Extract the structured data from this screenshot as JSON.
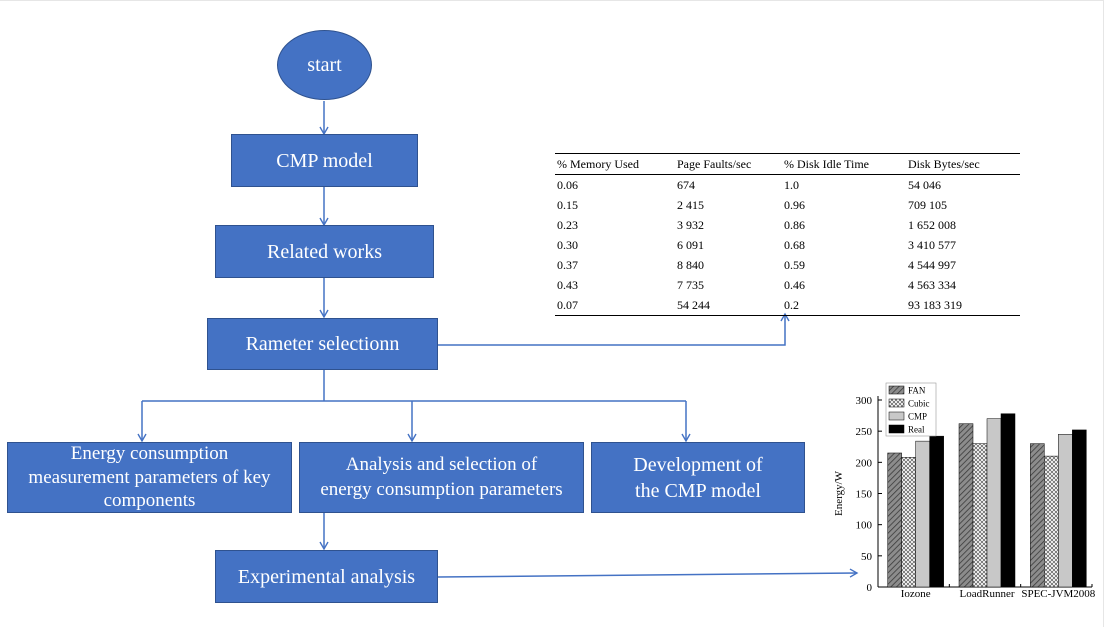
{
  "flowchart": {
    "start": "start",
    "cmp_model": "CMP model",
    "related_works": "Related works",
    "parameter_selection": "Rameter selectionn",
    "energy_measurement": [
      "Energy consumption",
      "measurement parameters of key",
      "components"
    ],
    "analysis_selection": [
      "Analysis and selection of",
      "energy consumption parameters"
    ],
    "development": [
      "Development of",
      "the CMP model"
    ],
    "experimental_analysis": "Experimental analysis"
  },
  "colors": {
    "node_fill": "#4472c4",
    "node_border": "#2f528f",
    "connector": "#4472c4"
  },
  "table": {
    "headers": [
      "% Memory Used",
      "Page Faults/sec",
      "% Disk Idle Time",
      "Disk Bytes/sec"
    ],
    "rows": [
      [
        "0.06",
        "674",
        "1.0",
        "54 046"
      ],
      [
        "0.15",
        "2 415",
        "0.96",
        "709 105"
      ],
      [
        "0.23",
        "3 932",
        "0.86",
        "1 652 008"
      ],
      [
        "0.30",
        "6 091",
        "0.68",
        "3 410 577"
      ],
      [
        "0.37",
        "8 840",
        "0.59",
        "4 544 997"
      ],
      [
        "0.43",
        "7 735",
        "0.46",
        "4 563 334"
      ],
      [
        "0.07",
        "54 244",
        "0.2",
        "93 183 319"
      ]
    ]
  },
  "chart_data": {
    "type": "bar",
    "categories": [
      "Iozone",
      "LoadRunner",
      "SPEC-JVM2008"
    ],
    "series": [
      {
        "name": "FAN",
        "values": [
          215,
          262,
          230
        ],
        "pattern": "diagonal-hatch",
        "color": "#7f7f7f"
      },
      {
        "name": "Cubic",
        "values": [
          208,
          230,
          210
        ],
        "pattern": "crosshatch",
        "color": "#ffffff"
      },
      {
        "name": "CMP",
        "values": [
          234,
          270,
          245
        ],
        "pattern": "solid",
        "color": "#c8c8c8"
      },
      {
        "name": "Real",
        "values": [
          242,
          278,
          252
        ],
        "pattern": "solid",
        "color": "#000000"
      }
    ],
    "ylabel": "Energy/W",
    "xlabel": "",
    "ylim": [
      0,
      300
    ],
    "yticks": [
      "0",
      "50",
      "100",
      "150",
      "200",
      "250",
      "300"
    ],
    "legend_position": "top-left",
    "grid": false
  }
}
